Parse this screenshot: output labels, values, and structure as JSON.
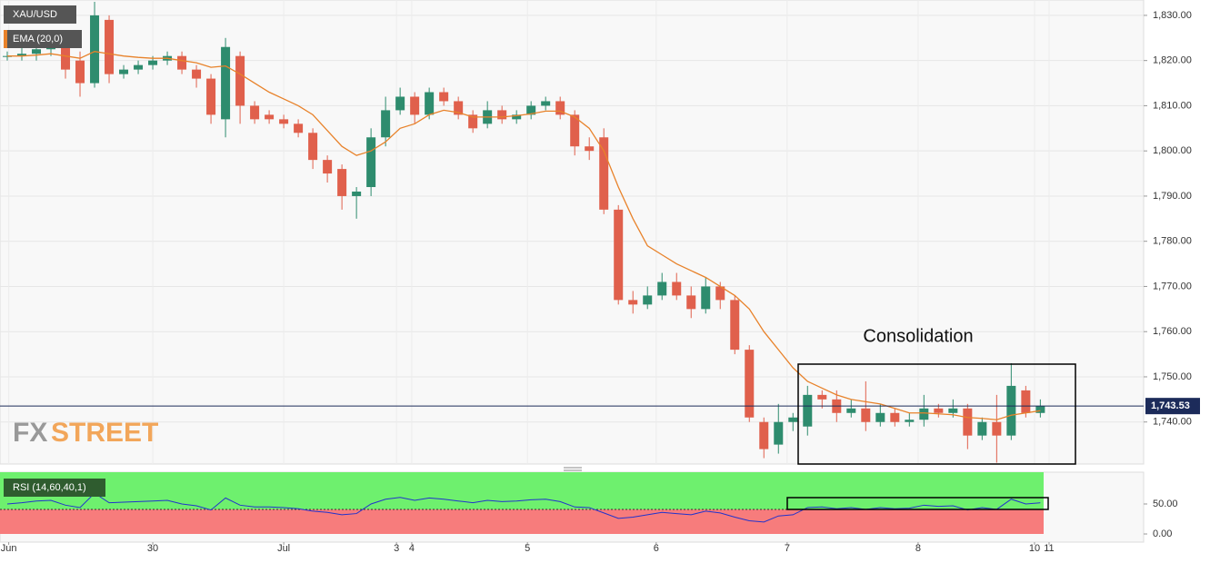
{
  "chart_data": [
    {
      "type": "candlestick",
      "title": "XAU/USD",
      "indicator": "EMA (20,0)",
      "annotation": "Consolidation",
      "watermark": [
        "FX",
        "STREET"
      ],
      "last_price": {
        "value": 1743.53,
        "label": "1,743.53"
      },
      "up_color": "#2e8c6e",
      "down_color": "#e0604c",
      "ema_color": "#e8822a",
      "last_price_color": "#1c2b5a",
      "xlim": [
        -0.5,
        78.1
      ],
      "ylim": [
        1730.7,
        1833.4
      ],
      "yticks": [
        {
          "value": 1740,
          "label": "1,740.00"
        },
        {
          "value": 1750,
          "label": "1,750.00"
        },
        {
          "value": 1760,
          "label": "1,760.00"
        },
        {
          "value": 1770,
          "label": "1,770.00"
        },
        {
          "value": 1780,
          "label": "1,780.00"
        },
        {
          "value": 1790,
          "label": "1,790.00"
        },
        {
          "value": 1800,
          "label": "1,800.00"
        },
        {
          "value": 1810,
          "label": "1,810.00"
        },
        {
          "value": 1820,
          "label": "1,820.00"
        },
        {
          "value": 1830,
          "label": "1,830.00"
        }
      ],
      "grid": true,
      "open": [
        1821,
        1821,
        1821.5,
        1822.5,
        1823,
        1820,
        1815,
        1829,
        1817,
        1818,
        1819,
        1820,
        1821,
        1818,
        1816,
        1807,
        1821,
        1810,
        1808,
        1807,
        1806,
        1804,
        1798,
        1796,
        1790,
        1792,
        1803,
        1809,
        1812,
        1808,
        1813,
        1811,
        1808,
        1806,
        1809,
        1807,
        1808,
        1810,
        1811,
        1808,
        1801,
        1803,
        1787,
        1767,
        1766,
        1768,
        1771,
        1768,
        1765,
        1770,
        1767,
        1756,
        1740,
        1735,
        1740,
        1739,
        1746,
        1745,
        1742,
        1743,
        1740,
        1742,
        1740,
        1740.5,
        1743,
        1742,
        1743,
        1737,
        1740,
        1737,
        1747,
        1742
      ],
      "high": [
        1822,
        1823,
        1824,
        1824,
        1824,
        1822,
        1833,
        1830,
        1819,
        1820,
        1821,
        1822,
        1822,
        1819,
        1817,
        1825,
        1822,
        1811,
        1809,
        1808,
        1807,
        1805,
        1799,
        1797,
        1792,
        1805,
        1812,
        1814,
        1813,
        1814,
        1814,
        1812,
        1809,
        1811,
        1810,
        1809,
        1811,
        1812,
        1812,
        1809,
        1803,
        1805,
        1788,
        1769,
        1770,
        1773,
        1773,
        1770,
        1772,
        1771,
        1768,
        1757,
        1741,
        1744,
        1742,
        1748,
        1747,
        1747,
        1745,
        1749,
        1744,
        1743,
        1742,
        1746,
        1744,
        1745,
        1744,
        1741,
        1746,
        1753,
        1748,
        1745
      ],
      "low": [
        1820,
        1820,
        1820,
        1821,
        1816,
        1812,
        1814,
        1815,
        1816,
        1817,
        1818,
        1819,
        1817,
        1814,
        1806,
        1803,
        1806,
        1806,
        1806,
        1805,
        1803,
        1796,
        1793,
        1787,
        1785,
        1790,
        1801,
        1808,
        1806,
        1807,
        1810,
        1807,
        1804,
        1805,
        1806,
        1806,
        1807,
        1809,
        1807,
        1799,
        1798,
        1786,
        1766,
        1764,
        1765,
        1767,
        1767,
        1763,
        1764,
        1765,
        1755,
        1740,
        1732,
        1733,
        1738,
        1737,
        1743,
        1740,
        1741,
        1738,
        1739,
        1739,
        1739,
        1739,
        1741,
        1741,
        1734,
        1736,
        1731,
        1736,
        1741,
        1741
      ],
      "close": [
        1821,
        1821.5,
        1822.5,
        1823,
        1818,
        1815,
        1830,
        1817,
        1818,
        1819,
        1820,
        1821,
        1818,
        1816,
        1808,
        1823,
        1810,
        1807,
        1807,
        1806,
        1804,
        1798,
        1795,
        1790,
        1791,
        1803,
        1809,
        1812,
        1808,
        1813,
        1811,
        1808,
        1805,
        1809,
        1807,
        1808,
        1810,
        1811,
        1808,
        1801,
        1800,
        1787,
        1767,
        1766,
        1768,
        1771,
        1768,
        1765,
        1770,
        1767,
        1756,
        1741,
        1734,
        1740,
        1741,
        1746,
        1745,
        1742,
        1743,
        1740,
        1742,
        1740,
        1740.5,
        1743,
        1742,
        1743,
        1737,
        1740,
        1737,
        1748,
        1742,
        1743.5
      ],
      "ema": [
        1821,
        1821,
        1821.2,
        1821.5,
        1821,
        1820.5,
        1822,
        1821.5,
        1821,
        1820.7,
        1820.5,
        1820.5,
        1820,
        1819.5,
        1818.5,
        1818.8,
        1817,
        1815,
        1813,
        1811.5,
        1810,
        1808,
        1804.5,
        1801,
        1799,
        1800,
        1802,
        1805,
        1806,
        1808,
        1809,
        1808.5,
        1807.5,
        1807.5,
        1807.5,
        1807.8,
        1808.2,
        1808.8,
        1808.8,
        1807.5,
        1805,
        1800,
        1792,
        1785,
        1779,
        1777,
        1775,
        1773.5,
        1772,
        1770,
        1768,
        1765,
        1760,
        1756,
        1752,
        1749,
        1747.5,
        1746,
        1745,
        1744.5,
        1744,
        1743,
        1742,
        1742,
        1741.8,
        1741.6,
        1741,
        1740.8,
        1740.5,
        1741.5,
        1742,
        1742.5
      ]
    },
    {
      "type": "line",
      "title": "RSI (14,60,40,1)",
      "color": "#2233cc",
      "xlim": [
        -0.5,
        78.1
      ],
      "ylim": [
        -13.6,
        103
      ],
      "xticks": [
        {
          "value": 0.1,
          "label": "Jun"
        },
        {
          "value": 10,
          "label": "30"
        },
        {
          "value": 19,
          "label": "Jul"
        },
        {
          "value": 26.75,
          "label": "3"
        },
        {
          "value": 27.8,
          "label": "4"
        },
        {
          "value": 35.75,
          "label": "5"
        },
        {
          "value": 44.6,
          "label": "6"
        },
        {
          "value": 53.6,
          "label": "7"
        },
        {
          "value": 62.6,
          "label": "8"
        },
        {
          "value": 70.6,
          "label": "10"
        },
        {
          "value": 71.6,
          "label": "11"
        }
      ],
      "yticks": [
        {
          "value": 0,
          "label": "0.00"
        },
        {
          "value": 50,
          "label": "50.00"
        }
      ],
      "values": [
        50,
        52,
        55,
        56,
        48,
        44,
        68,
        52,
        53,
        54,
        55,
        56,
        50,
        47,
        40,
        60,
        48,
        45,
        45,
        44,
        42,
        38,
        36,
        32,
        34,
        50,
        58,
        61,
        56,
        60,
        58,
        55,
        52,
        56,
        54,
        55,
        57,
        58,
        54,
        45,
        44,
        35,
        26,
        28,
        32,
        36,
        34,
        32,
        38,
        35,
        28,
        22,
        20,
        30,
        32,
        44,
        45,
        42,
        44,
        41,
        44,
        42,
        43,
        48,
        46,
        47,
        40,
        44,
        41,
        58,
        50,
        52
      ]
    }
  ]
}
